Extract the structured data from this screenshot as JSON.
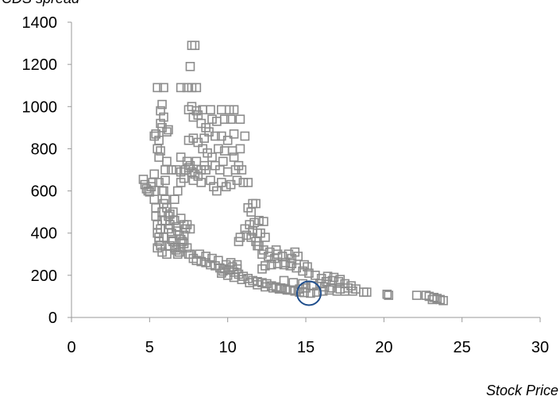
{
  "chart_data": {
    "type": "scatter",
    "xlabel": "Stock Price",
    "ylabel": "CDS spread",
    "xlim": [
      0,
      30
    ],
    "ylim": [
      0,
      1400
    ],
    "x_ticks": [
      0,
      5,
      10,
      15,
      20,
      25,
      30
    ],
    "y_ticks": [
      0,
      200,
      400,
      600,
      800,
      1000,
      1200,
      1400
    ],
    "grid": false,
    "legend": "none",
    "marker": "open-square",
    "marker_color": "#8c8c8c",
    "highlight": {
      "x": 15.2,
      "y": 115,
      "marker": "open-circle",
      "color": "#1f4e8c"
    },
    "series": [
      {
        "points": [
          [
            4.6,
            655
          ],
          [
            4.7,
            630
          ],
          [
            4.8,
            610
          ],
          [
            4.9,
            600
          ],
          [
            5.0,
            595
          ],
          [
            5.1,
            620
          ],
          [
            5.2,
            640
          ],
          [
            5.3,
            680
          ],
          [
            5.3,
            560
          ],
          [
            5.4,
            520
          ],
          [
            5.4,
            480
          ],
          [
            5.5,
            440
          ],
          [
            5.5,
            400
          ],
          [
            5.6,
            380
          ],
          [
            5.6,
            360
          ],
          [
            5.7,
            340
          ],
          [
            5.7,
            420
          ],
          [
            5.8,
            460
          ],
          [
            5.8,
            500
          ],
          [
            5.9,
            540
          ],
          [
            5.9,
            600
          ],
          [
            6.0,
            650
          ],
          [
            6.0,
            700
          ],
          [
            6.1,
            740
          ],
          [
            5.6,
            760
          ],
          [
            5.7,
            790
          ],
          [
            5.5,
            800
          ],
          [
            5.6,
            840
          ],
          [
            5.4,
            870
          ],
          [
            5.3,
            860
          ],
          [
            5.8,
            900
          ],
          [
            5.7,
            920
          ],
          [
            5.9,
            950
          ],
          [
            5.7,
            980
          ],
          [
            5.8,
            1010
          ],
          [
            5.5,
            1090
          ],
          [
            5.9,
            1090
          ],
          [
            6.1,
            880
          ],
          [
            6.2,
            890
          ],
          [
            5.6,
            640
          ],
          [
            5.8,
            600
          ],
          [
            6.0,
            560
          ],
          [
            6.1,
            520
          ],
          [
            6.2,
            480
          ],
          [
            6.3,
            440
          ],
          [
            6.4,
            400
          ],
          [
            6.5,
            360
          ],
          [
            6.6,
            330
          ],
          [
            6.7,
            320
          ],
          [
            6.8,
            300
          ],
          [
            6.9,
            310
          ],
          [
            7.0,
            330
          ],
          [
            7.1,
            360
          ],
          [
            7.2,
            390
          ],
          [
            7.3,
            420
          ],
          [
            6.5,
            500
          ],
          [
            6.6,
            460
          ],
          [
            6.7,
            430
          ],
          [
            6.8,
            410
          ],
          [
            6.9,
            390
          ],
          [
            7.0,
            370
          ],
          [
            7.2,
            350
          ],
          [
            7.4,
            330
          ],
          [
            7.5,
            300
          ],
          [
            5.5,
            330
          ],
          [
            5.8,
            310
          ],
          [
            6.1,
            300
          ],
          [
            6.3,
            340
          ],
          [
            6.4,
            370
          ],
          [
            6.2,
            420
          ],
          [
            6.0,
            460
          ],
          [
            5.9,
            380
          ],
          [
            6.6,
            560
          ],
          [
            6.8,
            600
          ],
          [
            7.0,
            640
          ],
          [
            7.2,
            660
          ],
          [
            6.4,
            700
          ],
          [
            6.7,
            700
          ],
          [
            7.0,
            690
          ],
          [
            7.3,
            700
          ],
          [
            7.5,
            710
          ],
          [
            7.7,
            690
          ],
          [
            7.9,
            680
          ],
          [
            8.1,
            670
          ],
          [
            8.3,
            700
          ],
          [
            8.5,
            720
          ],
          [
            7.0,
            760
          ],
          [
            7.4,
            740
          ],
          [
            7.6,
            720
          ],
          [
            8.0,
            740
          ],
          [
            7.0,
            1090
          ],
          [
            7.4,
            1090
          ],
          [
            7.7,
            1090
          ],
          [
            8.0,
            1090
          ],
          [
            7.6,
            1190
          ],
          [
            7.7,
            1290
          ],
          [
            7.9,
            1290
          ],
          [
            7.5,
            985
          ],
          [
            7.7,
            1000
          ],
          [
            8.0,
            980
          ],
          [
            8.4,
            985
          ],
          [
            8.9,
            985
          ],
          [
            9.6,
            985
          ],
          [
            10.1,
            985
          ],
          [
            10.4,
            985
          ],
          [
            7.8,
            950
          ],
          [
            8.1,
            960
          ],
          [
            8.3,
            920
          ],
          [
            8.6,
            900
          ],
          [
            9.0,
            940
          ],
          [
            9.3,
            930
          ],
          [
            9.8,
            940
          ],
          [
            10.2,
            940
          ],
          [
            10.8,
            940
          ],
          [
            7.5,
            840
          ],
          [
            7.8,
            850
          ],
          [
            8.1,
            830
          ],
          [
            8.5,
            850
          ],
          [
            8.8,
            880
          ],
          [
            9.2,
            860
          ],
          [
            9.6,
            860
          ],
          [
            10.0,
            840
          ],
          [
            10.4,
            870
          ],
          [
            11.1,
            860
          ],
          [
            8.4,
            800
          ],
          [
            8.7,
            780
          ],
          [
            9.0,
            760
          ],
          [
            9.4,
            800
          ],
          [
            9.8,
            790
          ],
          [
            10.3,
            790
          ],
          [
            10.8,
            800
          ],
          [
            8.6,
            700
          ],
          [
            8.9,
            650
          ],
          [
            9.1,
            620
          ],
          [
            9.3,
            600
          ],
          [
            9.6,
            640
          ],
          [
            9.9,
            620
          ],
          [
            10.2,
            630
          ],
          [
            10.6,
            650
          ],
          [
            11.0,
            640
          ],
          [
            11.3,
            640
          ],
          [
            9.5,
            700
          ],
          [
            10.0,
            690
          ],
          [
            10.5,
            700
          ],
          [
            10.9,
            700
          ],
          [
            9.2,
            720
          ],
          [
            9.7,
            740
          ],
          [
            10.4,
            760
          ],
          [
            10.7,
            720
          ],
          [
            7.8,
            650
          ],
          [
            8.3,
            640
          ],
          [
            7.4,
            440
          ],
          [
            7.6,
            420
          ],
          [
            7.2,
            440
          ],
          [
            7.0,
            470
          ],
          [
            6.3,
            490
          ],
          [
            7.6,
            300
          ],
          [
            7.8,
            280
          ],
          [
            8.0,
            270
          ],
          [
            8.3,
            265
          ],
          [
            8.6,
            260
          ],
          [
            8.9,
            250
          ],
          [
            9.2,
            245
          ],
          [
            9.5,
            235
          ],
          [
            9.8,
            230
          ],
          [
            10.1,
            225
          ],
          [
            10.4,
            215
          ],
          [
            10.7,
            205
          ],
          [
            11.0,
            195
          ],
          [
            11.3,
            185
          ],
          [
            11.6,
            175
          ],
          [
            11.9,
            170
          ],
          [
            12.2,
            165
          ],
          [
            12.5,
            160
          ],
          [
            12.8,
            150
          ],
          [
            13.1,
            145
          ],
          [
            13.4,
            140
          ],
          [
            13.7,
            135
          ],
          [
            14.0,
            130
          ],
          [
            14.3,
            125
          ],
          [
            14.6,
            120
          ],
          [
            14.9,
            118
          ],
          [
            15.3,
            115
          ],
          [
            15.7,
            120
          ],
          [
            16.1,
            125
          ],
          [
            16.5,
            130
          ],
          [
            17.0,
            125
          ],
          [
            17.5,
            125
          ],
          [
            18.0,
            125
          ],
          [
            18.7,
            120
          ],
          [
            8.2,
            300
          ],
          [
            8.6,
            290
          ],
          [
            9.0,
            280
          ],
          [
            9.4,
            270
          ],
          [
            9.9,
            250
          ],
          [
            10.3,
            240
          ],
          [
            10.6,
            230
          ],
          [
            9.6,
            210
          ],
          [
            10.0,
            200
          ],
          [
            10.4,
            190
          ],
          [
            10.9,
            180
          ],
          [
            11.4,
            165
          ],
          [
            11.9,
            155
          ],
          [
            12.4,
            145
          ],
          [
            12.9,
            140
          ],
          [
            13.3,
            135
          ],
          [
            13.8,
            130
          ],
          [
            14.2,
            130
          ],
          [
            14.6,
            135
          ],
          [
            15.0,
            140
          ],
          [
            15.5,
            150
          ],
          [
            15.9,
            160
          ],
          [
            16.3,
            170
          ],
          [
            16.7,
            175
          ],
          [
            17.1,
            170
          ],
          [
            17.5,
            160
          ],
          [
            17.9,
            150
          ],
          [
            16.0,
            185
          ],
          [
            16.4,
            195
          ],
          [
            16.8,
            190
          ],
          [
            17.2,
            180
          ],
          [
            15.6,
            200
          ],
          [
            15.2,
            210
          ],
          [
            14.8,
            220
          ],
          [
            14.4,
            235
          ],
          [
            14.0,
            245
          ],
          [
            13.6,
            250
          ],
          [
            13.2,
            255
          ],
          [
            12.8,
            250
          ],
          [
            12.4,
            245
          ],
          [
            12.2,
            230
          ],
          [
            14.9,
            250
          ],
          [
            15.1,
            240
          ],
          [
            14.1,
            280
          ],
          [
            14.5,
            290
          ],
          [
            14.3,
            310
          ],
          [
            13.9,
            300
          ],
          [
            13.5,
            290
          ],
          [
            13.2,
            300
          ],
          [
            13.1,
            320
          ],
          [
            12.7,
            310
          ],
          [
            12.3,
            320
          ],
          [
            12.0,
            340
          ],
          [
            11.8,
            360
          ],
          [
            11.5,
            380
          ],
          [
            11.2,
            390
          ],
          [
            10.8,
            380
          ],
          [
            10.7,
            360
          ],
          [
            11.1,
            420
          ],
          [
            11.4,
            440
          ],
          [
            11.7,
            450
          ],
          [
            12.0,
            460
          ],
          [
            12.3,
            455
          ],
          [
            11.6,
            410
          ],
          [
            11.9,
            400
          ],
          [
            11.3,
            520
          ],
          [
            11.6,
            540
          ],
          [
            11.8,
            540
          ],
          [
            11.5,
            500
          ],
          [
            11.9,
            340
          ],
          [
            12.2,
            300
          ],
          [
            12.6,
            290
          ],
          [
            13.0,
            280
          ],
          [
            12.1,
            400
          ],
          [
            12.4,
            380
          ],
          [
            13.7,
            260
          ],
          [
            14.1,
            255
          ],
          [
            16.2,
            145
          ],
          [
            16.6,
            140
          ],
          [
            17.2,
            135
          ],
          [
            17.7,
            140
          ],
          [
            18.2,
            135
          ],
          [
            18.9,
            120
          ],
          [
            20.2,
            110
          ],
          [
            20.3,
            105
          ],
          [
            22.1,
            105
          ],
          [
            22.7,
            105
          ],
          [
            22.9,
            100
          ],
          [
            23.2,
            95
          ],
          [
            23.4,
            90
          ],
          [
            23.6,
            85
          ],
          [
            23.8,
            80
          ],
          [
            23.1,
            85
          ],
          [
            13.6,
            175
          ],
          [
            14.2,
            165
          ],
          [
            14.8,
            160
          ],
          [
            15.4,
            150
          ],
          [
            10.2,
            260
          ],
          [
            10.6,
            250
          ],
          [
            9.7,
            220
          ]
        ]
      }
    ]
  }
}
